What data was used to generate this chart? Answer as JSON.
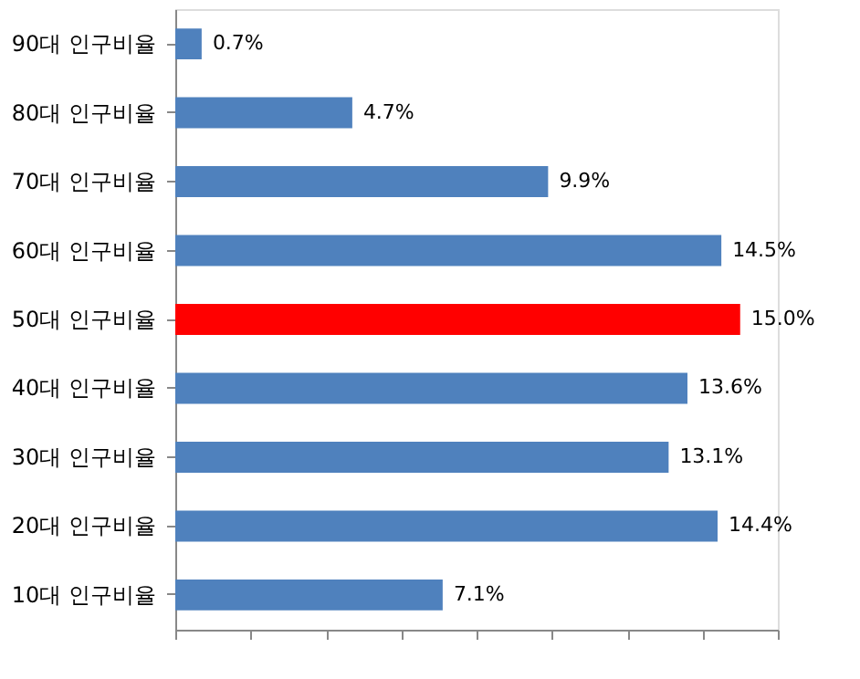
{
  "chart_data": {
    "type": "bar",
    "orientation": "horizontal",
    "categories": [
      "90대 인구비율",
      "80대 인구비율",
      "70대 인구비율",
      "60대 인구비율",
      "50대 인구비율",
      "40대 인구비율",
      "30대 인구비율",
      "20대 인구비율",
      "10대 인구비율"
    ],
    "values": [
      0.7,
      4.7,
      9.9,
      14.5,
      15.0,
      13.6,
      13.1,
      14.4,
      7.1
    ],
    "value_labels": [
      "0.7%",
      "4.7%",
      "9.9%",
      "14.5%",
      "15.0%",
      "13.6%",
      "13.1%",
      "14.4%",
      "7.1%"
    ],
    "colors": [
      "#4f81bd",
      "#4f81bd",
      "#4f81bd",
      "#4f81bd",
      "#ff0000",
      "#4f81bd",
      "#4f81bd",
      "#4f81bd",
      "#4f81bd"
    ]
  }
}
